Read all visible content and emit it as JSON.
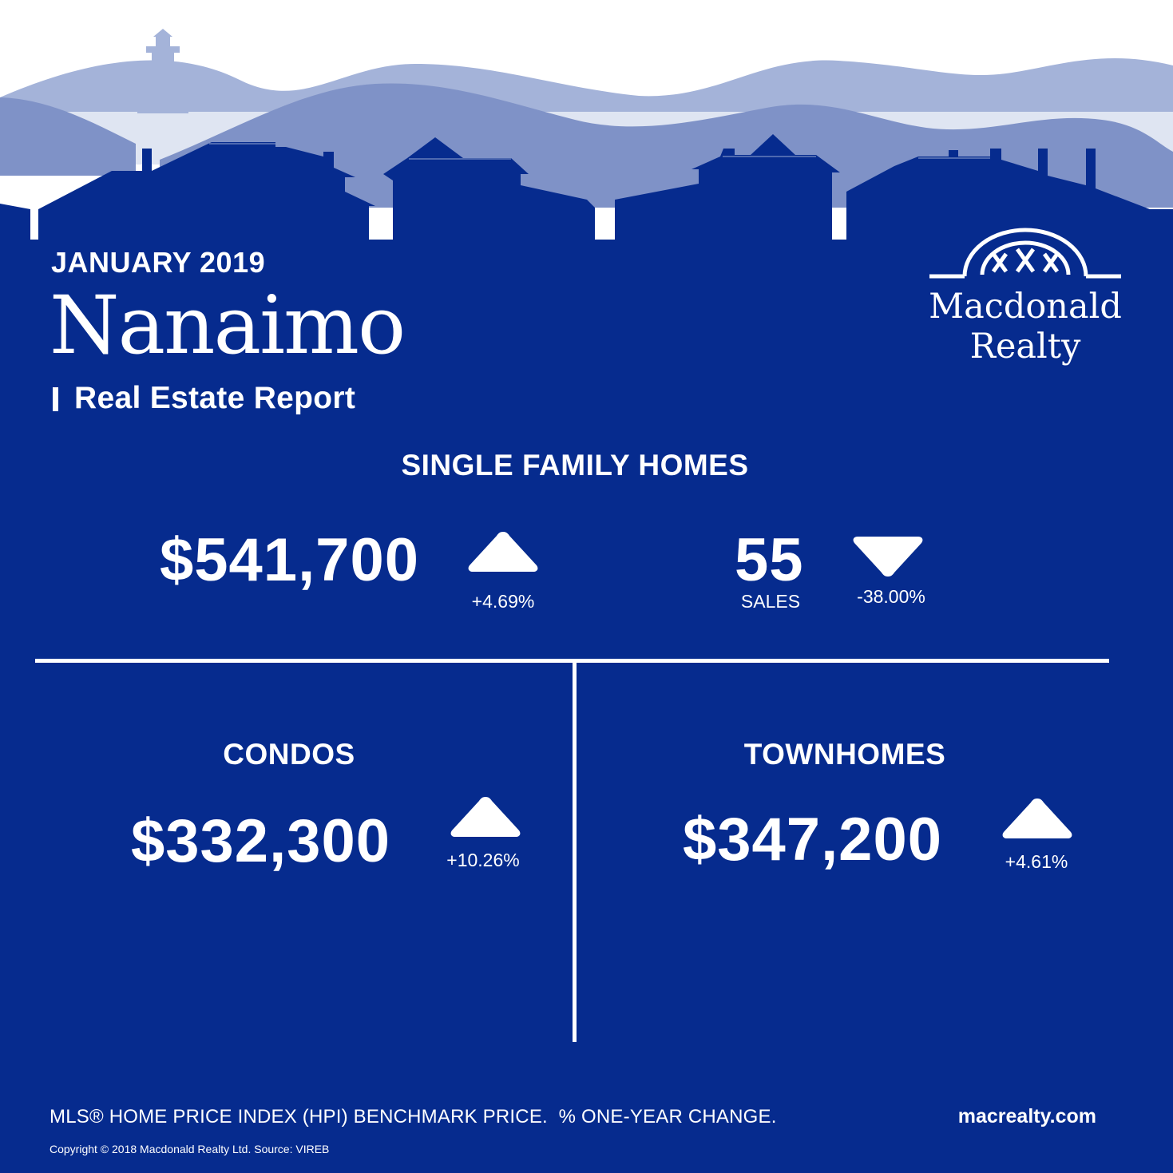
{
  "header": {
    "month": "JANUARY 2019",
    "city": "Nanaimo",
    "subtitle": "Real Estate Report"
  },
  "brand": {
    "line1": "Macdonald",
    "line2": "Realty",
    "logo_icon": "macdonald-realty-arch-logo"
  },
  "single_family": {
    "title": "SINGLE FAMILY HOMES",
    "price": "$541,700",
    "price_change": "+4.69%",
    "price_direction": "up",
    "sales": "55",
    "sales_label": "SALES",
    "sales_change": "-38.00%",
    "sales_direction": "down"
  },
  "condos": {
    "title": "CONDOS",
    "price": "$332,300",
    "price_change": "+10.26%",
    "price_direction": "up"
  },
  "townhomes": {
    "title": "TOWNHOMES",
    "price": "$347,200",
    "price_change": "+4.61%",
    "price_direction": "up"
  },
  "footer": {
    "note": "MLS® HOME PRICE INDEX (HPI) BENCHMARK PRICE.  % ONE-YEAR CHANGE.",
    "copyright": "Copyright © 2018 Macdonald Realty Ltd.  Source: VIREB",
    "website": "macrealty.com"
  },
  "colors": {
    "navy": "#062b8e",
    "mid_hill": "#7f92c7",
    "light_hill": "#a4b3d9",
    "pale_water": "#dfe5f2",
    "white": "#ffffff"
  }
}
